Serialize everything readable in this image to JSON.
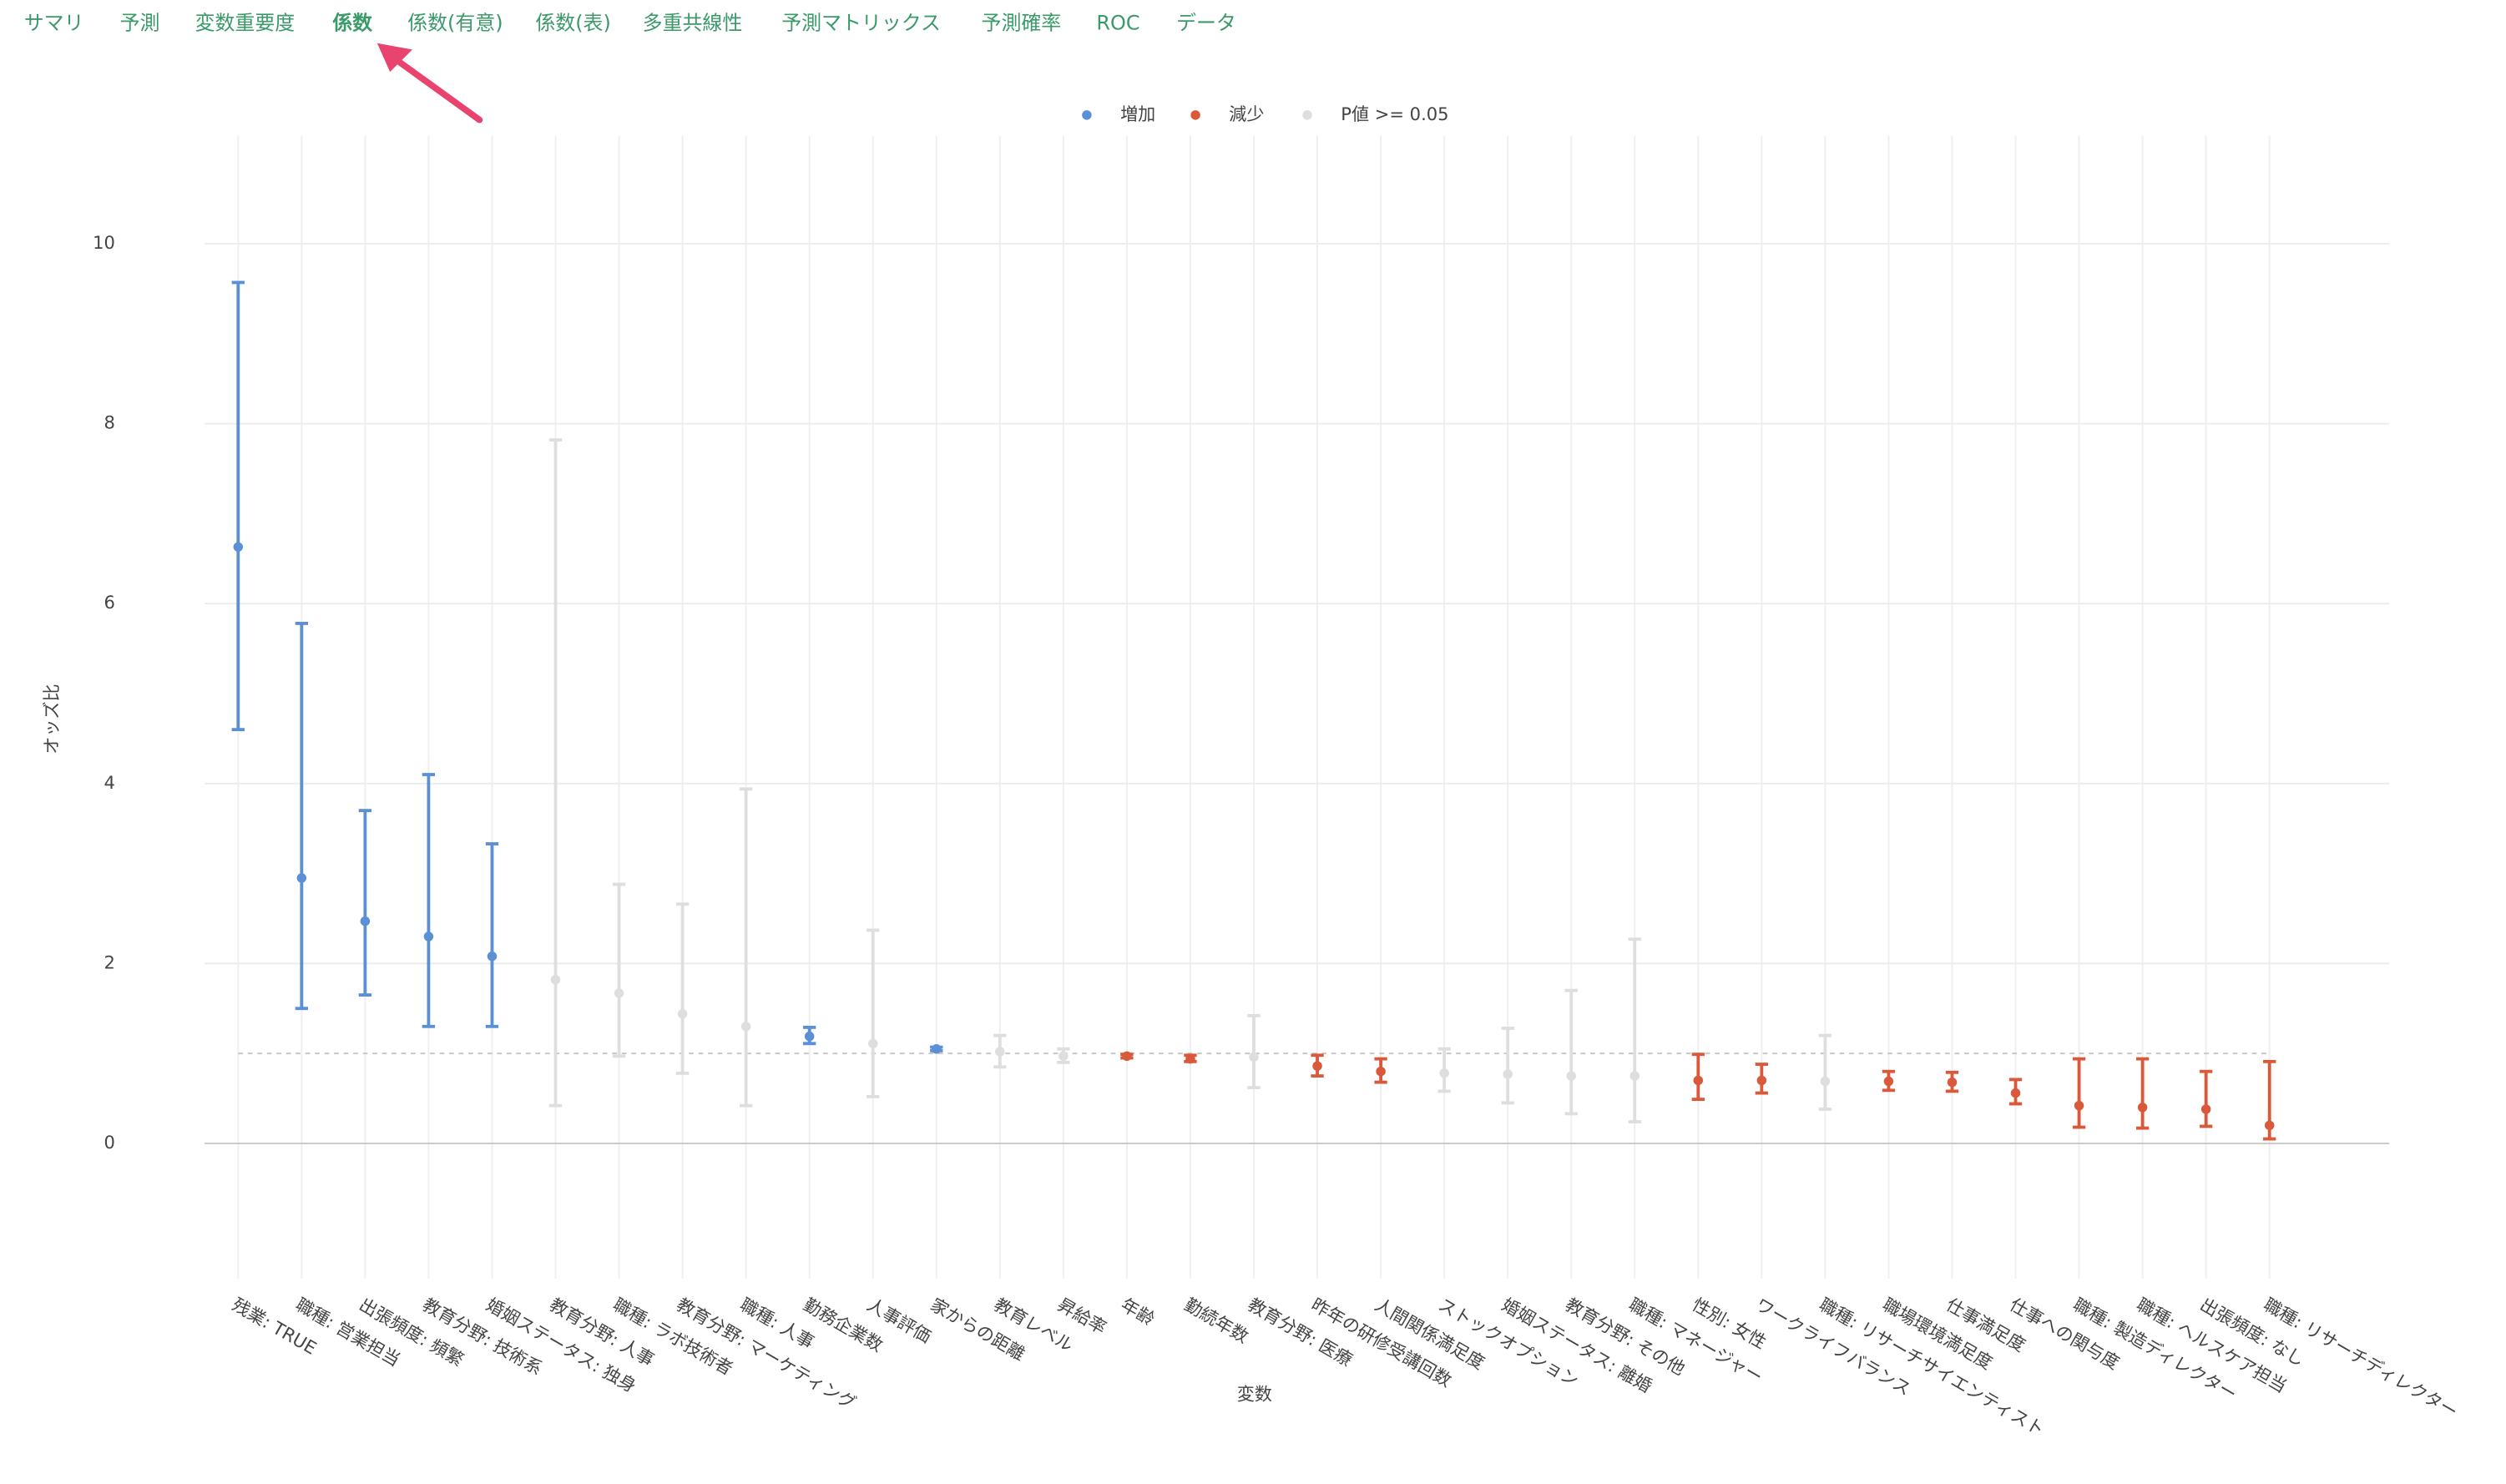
{
  "tabs": [
    "サマリ",
    "予測",
    "変数重要度",
    "係数",
    "係数(有意)",
    "係数(表)",
    "多重共線性",
    "予測マトリックス",
    "予測確率",
    "ROC",
    "データ"
  ],
  "active_tab": 3,
  "chart_data": {
    "type": "errorbar",
    "x_label": "変数",
    "y_label": "オッズ比",
    "ylim": [
      -1.5,
      11.2
    ],
    "yticks": [
      0,
      2,
      4,
      6,
      8,
      10
    ],
    "reference_line": 1,
    "grid": true,
    "legend": "top",
    "categories": [
      "残業: TRUE",
      "職種: 営業担当",
      "出張頻度: 頻繁",
      "教育分野: 技術系",
      "婚姻ステータス: 独身",
      "教育分野: 人事",
      "職種: ラボ技術者",
      "教育分野: マーケティング",
      "職種: 人事",
      "勤務企業数",
      "人事評価",
      "家からの距離",
      "教育レベル",
      "昇給率",
      "年齢",
      "勤続年数",
      "教育分野: 医療",
      "昨年の研修受講回数",
      "人間関係満足度",
      "ストックオプション",
      "婚姻ステータス: 離婚",
      "教育分野: その他",
      "職種: マネージャー",
      "性別: 女性",
      "ワークライフバランス",
      "職種: リサーチサイエンティスト",
      "職場環境満足度",
      "仕事満足度",
      "仕事への関与度",
      "職種: 製造ディレクター",
      "職種: ヘルスケア担当",
      "出張頻度: なし",
      "職種: リサーチディレクター"
    ],
    "series": [
      {
        "name": "増加",
        "color": "#5b8fd6",
        "values": [
          6.63,
          2.95,
          2.47,
          2.3,
          2.08,
          null,
          null,
          null,
          null,
          1.19,
          null,
          1.05,
          null,
          null,
          null,
          null,
          null,
          null,
          null,
          null,
          null,
          null,
          null,
          null,
          null,
          null,
          null,
          null,
          null,
          null,
          null,
          null,
          null
        ],
        "lower": [
          4.6,
          1.5,
          1.65,
          1.3,
          1.3,
          null,
          null,
          null,
          null,
          1.11,
          null,
          1.03,
          null,
          null,
          null,
          null,
          null,
          null,
          null,
          null,
          null,
          null,
          null,
          null,
          null,
          null,
          null,
          null,
          null,
          null,
          null,
          null,
          null
        ],
        "upper": [
          9.57,
          5.78,
          3.7,
          4.1,
          3.33,
          null,
          null,
          null,
          null,
          1.29,
          null,
          1.07,
          null,
          null,
          null,
          null,
          null,
          null,
          null,
          null,
          null,
          null,
          null,
          null,
          null,
          null,
          null,
          null,
          null,
          null,
          null,
          null,
          null
        ]
      },
      {
        "name": "減少",
        "color": "#d9593a",
        "values": [
          null,
          null,
          null,
          null,
          null,
          null,
          null,
          null,
          null,
          null,
          null,
          null,
          null,
          null,
          0.97,
          0.94,
          null,
          0.86,
          0.8,
          null,
          null,
          null,
          null,
          0.7,
          0.7,
          null,
          0.69,
          0.68,
          0.56,
          0.42,
          0.4,
          0.38,
          0.2
        ],
        "lower": [
          null,
          null,
          null,
          null,
          null,
          null,
          null,
          null,
          null,
          null,
          null,
          null,
          null,
          null,
          0.95,
          0.91,
          null,
          0.75,
          0.68,
          null,
          null,
          null,
          null,
          0.49,
          0.56,
          null,
          0.59,
          0.58,
          0.44,
          0.18,
          0.17,
          0.19,
          0.05
        ],
        "upper": [
          null,
          null,
          null,
          null,
          null,
          null,
          null,
          null,
          null,
          null,
          null,
          null,
          null,
          null,
          0.99,
          0.98,
          null,
          0.98,
          0.94,
          null,
          null,
          null,
          null,
          0.99,
          0.88,
          null,
          0.8,
          0.79,
          0.71,
          0.94,
          0.94,
          0.8,
          0.91
        ]
      },
      {
        "name": "P値 >= 0.05",
        "color": "#dedede",
        "values": [
          null,
          null,
          null,
          null,
          null,
          1.82,
          1.67,
          1.44,
          1.3,
          null,
          1.11,
          null,
          1.02,
          0.97,
          null,
          null,
          0.96,
          null,
          null,
          0.78,
          0.77,
          0.75,
          0.75,
          null,
          null,
          0.69,
          null,
          null,
          null,
          null,
          null,
          null,
          null
        ],
        "lower": [
          null,
          null,
          null,
          null,
          null,
          0.42,
          0.97,
          0.78,
          0.42,
          null,
          0.52,
          null,
          0.85,
          0.9,
          null,
          null,
          0.62,
          null,
          null,
          0.58,
          0.45,
          0.33,
          0.24,
          null,
          null,
          0.38,
          null,
          null,
          null,
          null,
          null,
          null,
          null
        ],
        "upper": [
          null,
          null,
          null,
          null,
          null,
          7.82,
          2.88,
          2.66,
          3.94,
          null,
          2.37,
          null,
          1.2,
          1.05,
          null,
          null,
          1.42,
          null,
          null,
          1.05,
          1.28,
          1.7,
          2.27,
          null,
          null,
          1.2,
          null,
          null,
          null,
          null,
          null,
          null,
          null
        ]
      }
    ]
  }
}
